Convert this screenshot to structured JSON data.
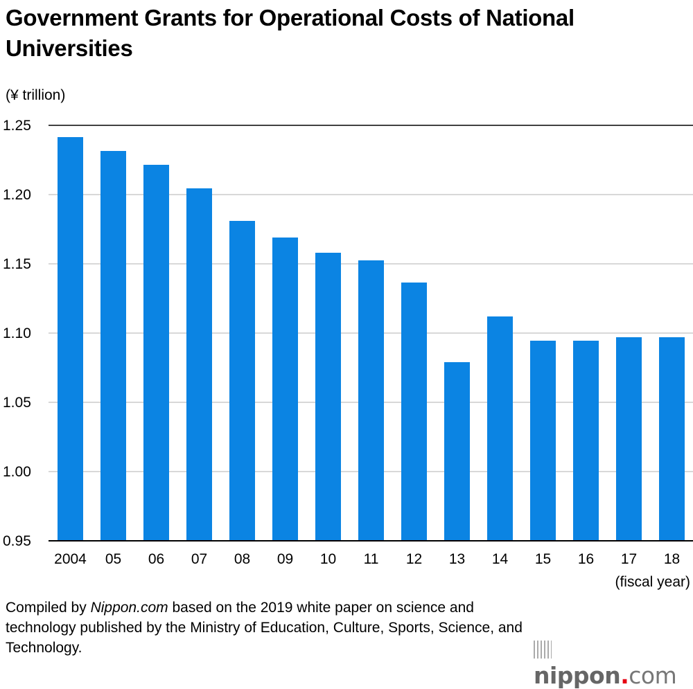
{
  "chart_data": {
    "type": "bar",
    "title": "Government Grants for Operational Costs of National Universities",
    "ylabel": "(¥ trillion)",
    "xlabel": "(fiscal year)",
    "categories": [
      "2004",
      "05",
      "06",
      "07",
      "08",
      "09",
      "10",
      "11",
      "12",
      "13",
      "14",
      "15",
      "16",
      "17",
      "18"
    ],
    "values": [
      1.2415,
      1.2315,
      1.2215,
      1.2045,
      1.181,
      1.169,
      1.158,
      1.1525,
      1.1365,
      1.079,
      1.112,
      1.0945,
      1.0945,
      1.097,
      1.097
    ],
    "ylim": [
      0.95,
      1.25
    ],
    "yticks": [
      "0.95",
      "1.00",
      "1.05",
      "1.10",
      "1.15",
      "1.20",
      "1.25"
    ],
    "grid": true,
    "bar_color": "#0b84e3"
  },
  "source": {
    "prefix": "Compiled by ",
    "italic": "Nippon.com",
    "suffix": " based on the 2019 white paper on science and technology published by the Ministry of Education, Culture, Sports, Science, and Technology."
  },
  "logo": {
    "name": "nippon",
    "dot": ".",
    "tld": "com"
  }
}
